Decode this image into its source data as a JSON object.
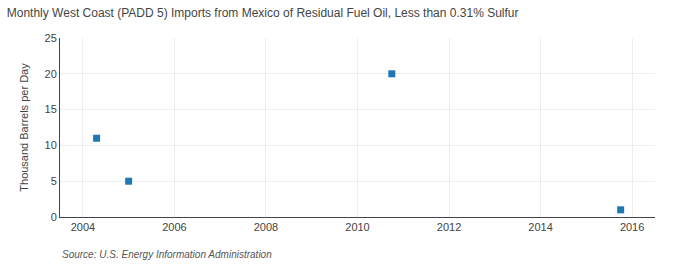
{
  "chart_data": {
    "type": "scatter",
    "title": "Monthly West Coast (PADD 5) Imports from Mexico of Residual Fuel Oil, Less than 0.31% Sulfur",
    "ylabel": "Thousand Barrels per Day",
    "annotations": [
      "Source: U.S. Energy Information Administration"
    ],
    "x": [
      2004.3,
      2005.0,
      2010.75,
      2015.75
    ],
    "values": [
      11,
      5,
      20,
      1
    ],
    "marker": "square",
    "xlim": [
      2003.5,
      2016.5
    ],
    "xticks": [
      2004,
      2006,
      2008,
      2010,
      2012,
      2014,
      2016
    ],
    "ylim": [
      0,
      25
    ],
    "yticks": [
      0,
      5,
      10,
      15,
      20,
      25
    ],
    "grid": true
  }
}
